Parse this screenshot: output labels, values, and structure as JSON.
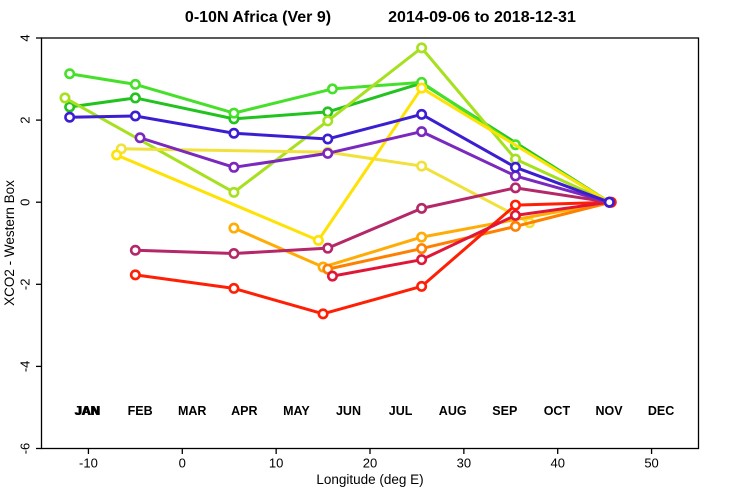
{
  "title": "0-10N Africa (Ver 9)   2014-09-06 to 2018-12-31",
  "chart_data": {
    "type": "line",
    "title_left": "0-10N Africa (Ver 9)",
    "title_right": "2014-09-06 to 2018-12-31",
    "xlabel": "Longitude (deg E)",
    "ylabel": "XCO2 - Western Box",
    "xlim": [
      -15,
      55
    ],
    "ylim": [
      -6,
      4
    ],
    "x_ticks": [
      -10,
      0,
      10,
      20,
      30,
      40,
      50
    ],
    "y_ticks": [
      -6,
      -4,
      -2,
      0,
      2,
      4
    ],
    "grid": false,
    "marker": "open-circle",
    "legend_position": "bottom-inside",
    "series": [
      {
        "name": "JAN",
        "color": "#22c31e",
        "points": [
          [
            -12,
            2.32
          ],
          [
            -5,
            2.54
          ],
          [
            5.5,
            2.03
          ],
          [
            15.5,
            2.2
          ],
          [
            25.5,
            2.9
          ],
          [
            45.5,
            0
          ]
        ]
      },
      {
        "name": "FEB",
        "color": "#46e02a",
        "points": [
          [
            -12,
            3.13
          ],
          [
            -5,
            2.87
          ],
          [
            5.5,
            2.17
          ],
          [
            16,
            2.76
          ],
          [
            25.5,
            2.92
          ],
          [
            35.5,
            1.4
          ],
          [
            45.5,
            0
          ]
        ]
      },
      {
        "name": "MAR",
        "color": "#a6e01e",
        "points": [
          [
            -12.5,
            2.54
          ],
          [
            5.5,
            0.24
          ],
          [
            15.5,
            1.98
          ],
          [
            25.5,
            3.76
          ],
          [
            35.5,
            1.05
          ],
          [
            45.5,
            0
          ]
        ]
      },
      {
        "name": "APR",
        "color": "#f0e13c",
        "points": [
          [
            -6.5,
            1.3
          ],
          [
            15.5,
            1.22
          ],
          [
            25.5,
            0.88
          ],
          [
            37,
            -0.5
          ],
          [
            45.5,
            0
          ]
        ]
      },
      {
        "name": "MAY",
        "color": "#ffe205",
        "points": [
          [
            -7,
            1.15
          ],
          [
            14.5,
            -0.93
          ],
          [
            25.5,
            2.78
          ],
          [
            45.5,
            0
          ]
        ]
      },
      {
        "name": "JUN",
        "color": "#ffac05",
        "points": [
          [
            5.5,
            -0.63
          ],
          [
            15,
            -1.58
          ],
          [
            25.5,
            -0.85
          ],
          [
            45.5,
            0
          ]
        ]
      },
      {
        "name": "JUL",
        "color": "#ff7f00",
        "points": [
          [
            15.5,
            -1.63
          ],
          [
            25.5,
            -1.13
          ],
          [
            35.5,
            -0.59
          ],
          [
            45.7,
            0
          ]
        ]
      },
      {
        "name": "AUG",
        "color": "#ff1f05",
        "points": [
          [
            -5,
            -1.77
          ],
          [
            5.5,
            -2.1
          ],
          [
            15,
            -2.72
          ],
          [
            25.5,
            -2.05
          ],
          [
            35.5,
            -0.07
          ],
          [
            45.7,
            0
          ]
        ]
      },
      {
        "name": "SEP",
        "color": "#e01638",
        "points": [
          [
            16,
            -1.8
          ],
          [
            25.5,
            -1.4
          ],
          [
            35.5,
            -0.32
          ],
          [
            45.5,
            0
          ]
        ]
      },
      {
        "name": "OCT",
        "color": "#b42869",
        "points": [
          [
            -5,
            -1.17
          ],
          [
            5.5,
            -1.25
          ],
          [
            15.5,
            -1.12
          ],
          [
            25.5,
            -0.15
          ],
          [
            35.5,
            0.35
          ],
          [
            45.5,
            0
          ]
        ]
      },
      {
        "name": "NOV",
        "color": "#7a28be",
        "points": [
          [
            -4.5,
            1.57
          ],
          [
            5.5,
            0.85
          ],
          [
            15.5,
            1.19
          ],
          [
            25.5,
            1.72
          ],
          [
            35.5,
            0.64
          ],
          [
            45.5,
            0
          ]
        ]
      },
      {
        "name": "DEC",
        "color": "#3c1ed2",
        "points": [
          [
            -12,
            2.07
          ],
          [
            -5,
            2.1
          ],
          [
            5.5,
            1.68
          ],
          [
            15.5,
            1.54
          ],
          [
            25.5,
            2.14
          ],
          [
            35.5,
            0.85
          ],
          [
            45.5,
            0
          ]
        ]
      }
    ],
    "legend": {
      "items": [
        {
          "label": "JAN",
          "color": "#22c31e",
          "double_print_color": "#0a8f0a"
        },
        {
          "label": "FEB",
          "color": "#46e02a"
        },
        {
          "label": "MAR",
          "color": "#a6e01e"
        },
        {
          "label": "APR",
          "color": "#f0e13c"
        },
        {
          "label": "MAY",
          "color": "#ffe205"
        },
        {
          "label": "JUN",
          "color": "#ffac05"
        },
        {
          "label": "JUL",
          "color": "#ff7f00"
        },
        {
          "label": "AUG",
          "color": "#ff1f05"
        },
        {
          "label": "SEP",
          "color": "#e84545"
        },
        {
          "label": "OCT",
          "color": "#c4548e"
        },
        {
          "label": "NOV",
          "color": "#9346c8"
        },
        {
          "label": "DEC",
          "color": "#5a46dc"
        }
      ]
    }
  }
}
